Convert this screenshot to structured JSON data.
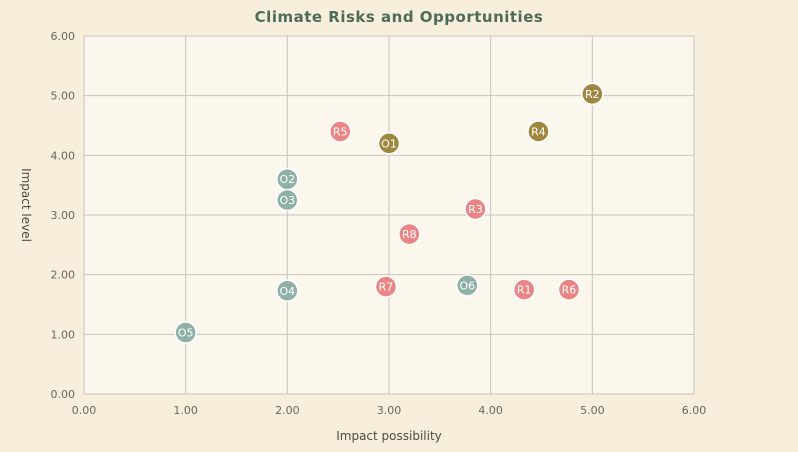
{
  "chart_data": {
    "type": "scatter",
    "title": "Climate Risks and Opportunities",
    "xlabel": "Impact possibility",
    "ylabel": "Impact level",
    "xlim": [
      0,
      6
    ],
    "ylim": [
      0,
      6
    ],
    "xticks": [
      "0.00",
      "1.00",
      "2.00",
      "3.00",
      "4.00",
      "5.00",
      "6.00"
    ],
    "yticks": [
      "0.00",
      "1.00",
      "2.00",
      "3.00",
      "4.00",
      "5.00",
      "6.00"
    ],
    "grid": true,
    "legend": "none",
    "colors": {
      "risk": "#e98585",
      "risk_high": "#a08740",
      "opportunity": "#8fb0a6",
      "opportunity_high": "#a08740"
    },
    "points": [
      {
        "label": "R1",
        "x": 4.33,
        "y": 1.75,
        "group": "risk"
      },
      {
        "label": "R2",
        "x": 5.0,
        "y": 5.03,
        "group": "risk_high"
      },
      {
        "label": "R3",
        "x": 3.85,
        "y": 3.1,
        "group": "risk"
      },
      {
        "label": "R4",
        "x": 4.47,
        "y": 4.4,
        "group": "risk_high"
      },
      {
        "label": "R5",
        "x": 2.52,
        "y": 4.4,
        "group": "risk"
      },
      {
        "label": "R6",
        "x": 4.77,
        "y": 1.75,
        "group": "risk"
      },
      {
        "label": "R7",
        "x": 2.97,
        "y": 1.8,
        "group": "risk"
      },
      {
        "label": "R8",
        "x": 3.2,
        "y": 2.68,
        "group": "risk"
      },
      {
        "label": "O1",
        "x": 3.0,
        "y": 4.2,
        "group": "opportunity_high"
      },
      {
        "label": "O2",
        "x": 2.0,
        "y": 3.6,
        "group": "opportunity"
      },
      {
        "label": "O3",
        "x": 2.0,
        "y": 3.25,
        "group": "opportunity"
      },
      {
        "label": "O4",
        "x": 2.0,
        "y": 1.73,
        "group": "opportunity"
      },
      {
        "label": "O5",
        "x": 1.0,
        "y": 1.03,
        "group": "opportunity"
      },
      {
        "label": "O6",
        "x": 3.77,
        "y": 1.82,
        "group": "opportunity"
      }
    ]
  }
}
